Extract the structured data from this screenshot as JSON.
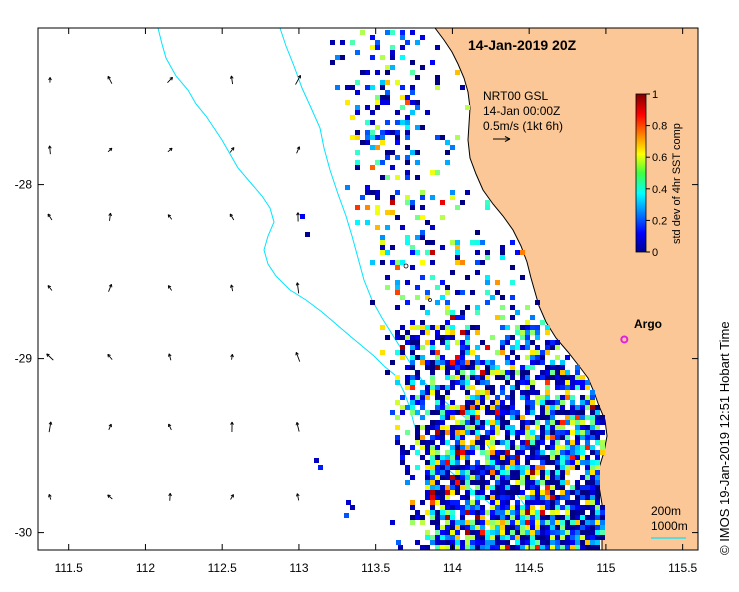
{
  "map": {
    "title": "14-Jan-2019 20Z",
    "current_legend": {
      "line1": "NRT00 GSL",
      "line2": "14-Jan 00:00Z",
      "line3": "0.5m/s (1kt 6h)"
    },
    "colorbar": {
      "label": "std dev of 4hr SST comp",
      "ticks": [
        "0",
        "0.2",
        "0.4",
        "0.6",
        "0.8",
        "1"
      ],
      "range": [
        0,
        1
      ],
      "colormap": "jet"
    },
    "argo": {
      "label": "Argo",
      "lon": 115.12,
      "lat": -28.89,
      "color": "#e020e0"
    },
    "bathymetry_legend": {
      "line1": "200m",
      "line2": "1000m",
      "color": "#00e5ff"
    },
    "credit": "©  IMOS 19-Jan-2019 12:51 Hobart Time",
    "axes": {
      "lon_range": [
        111.3,
        115.6
      ],
      "lat_range": [
        -30.1,
        -27.1
      ],
      "x_ticks": [
        "111.5",
        "112",
        "112.5",
        "113",
        "113.5",
        "114",
        "114.5",
        "115",
        "115.5"
      ],
      "y_ticks": [
        "-28",
        "-29",
        "-30"
      ]
    },
    "colors": {
      "land": "#fbc796",
      "coastline": "#000000",
      "isobath": "#00e5ff",
      "argo": "#e020e0"
    }
  }
}
